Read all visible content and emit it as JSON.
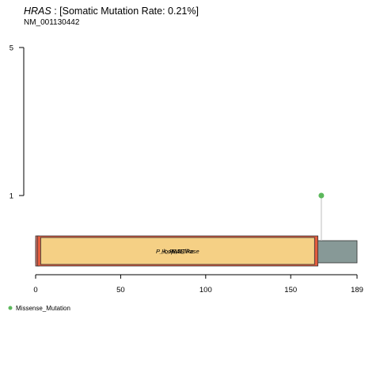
{
  "title": {
    "gene": "HRAS",
    "rate_text": " : [Somatic Mutation Rate: 0.21%]"
  },
  "subtitle": "NM_001130442",
  "chart_data": {
    "type": "lollipop",
    "protein_length": 189,
    "x_ticks": [
      0,
      50,
      100,
      150,
      189
    ],
    "y_ticks": [
      1,
      5
    ],
    "ylim": [
      0,
      5
    ],
    "protein_color": "#879997",
    "domains": [
      {
        "name": "H_RAS_like",
        "start": 0,
        "end": 2,
        "color": "#d9776a"
      },
      {
        "name": "RAS",
        "start": 1,
        "end": 166,
        "color": "#e35c3e"
      },
      {
        "name": "P_loop_NTPase",
        "start": 3,
        "end": 164,
        "color": "#f5d085"
      }
    ],
    "domain_label_text": "H_RAS_like",
    "mutations": [
      {
        "position": 168,
        "count": 1,
        "type": "Missense_Mutation",
        "color": "#5cb85c"
      }
    ],
    "legend": [
      {
        "label": "Missense_Mutation",
        "color": "#5cb85c"
      }
    ]
  }
}
